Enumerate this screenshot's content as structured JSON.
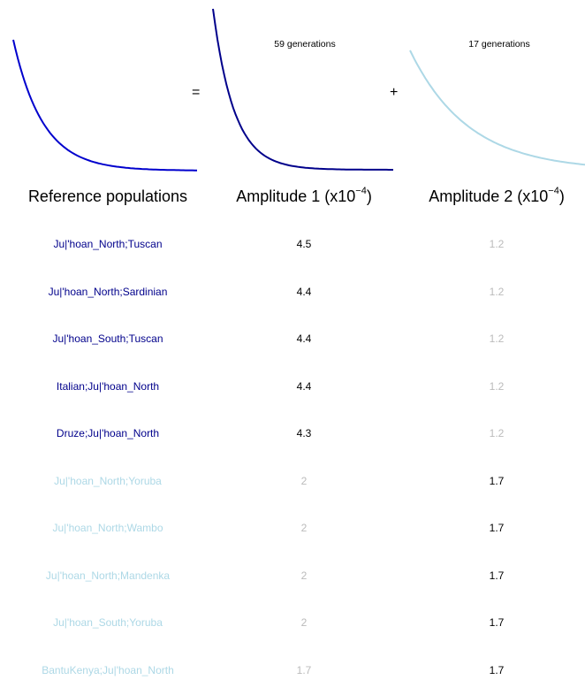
{
  "chart_data": {
    "type": "table",
    "operators": {
      "equals": "=",
      "plus": "+"
    },
    "components": [
      {
        "label": "59 generations",
        "color": "#00008B"
      },
      {
        "label": "17 generations",
        "color": "#ADD8E6"
      }
    ],
    "curve_colors": {
      "total": "#0000CD",
      "component1": "#00008B",
      "component2": "#ADD8E6"
    },
    "headers": {
      "populations": "Reference populations",
      "amp1_prefix": "Amplitude 1 (x10",
      "amp1_exp": "−4",
      "amp1_suffix": ")",
      "amp2_prefix": "Amplitude 2 (x10",
      "amp2_exp": "−4",
      "amp2_suffix": ")"
    },
    "rows": [
      {
        "populations": "Ju|'hoan_North;Tuscan",
        "amp1": "4.5",
        "amp2": "1.2",
        "dominant": 1
      },
      {
        "populations": "Ju|'hoan_North;Sardinian",
        "amp1": "4.4",
        "amp2": "1.2",
        "dominant": 1
      },
      {
        "populations": "Ju|'hoan_South;Tuscan",
        "amp1": "4.4",
        "amp2": "1.2",
        "dominant": 1
      },
      {
        "populations": "Italian;Ju|'hoan_North",
        "amp1": "4.4",
        "amp2": "1.2",
        "dominant": 1
      },
      {
        "populations": "Druze;Ju|'hoan_North",
        "amp1": "4.3",
        "amp2": "1.2",
        "dominant": 1
      },
      {
        "populations": "Ju|'hoan_North;Yoruba",
        "amp1": "2",
        "amp2": "1.7",
        "dominant": 2
      },
      {
        "populations": "Ju|'hoan_North;Wambo",
        "amp1": "2",
        "amp2": "1.7",
        "dominant": 2
      },
      {
        "populations": "Ju|'hoan_North;Mandenka",
        "amp1": "2",
        "amp2": "1.7",
        "dominant": 2
      },
      {
        "populations": "Ju|'hoan_South;Yoruba",
        "amp1": "2",
        "amp2": "1.7",
        "dominant": 2
      },
      {
        "populations": "BantuKenya;Ju|'hoan_North",
        "amp1": "1.7",
        "amp2": "1.7",
        "dominant": 2
      }
    ],
    "styles": {
      "dominant_label_color": "#00008B",
      "secondary_label_color": "#ADD8E6",
      "strong_value_color": "#000000",
      "faded_value_color": "#BBBBBB"
    }
  }
}
